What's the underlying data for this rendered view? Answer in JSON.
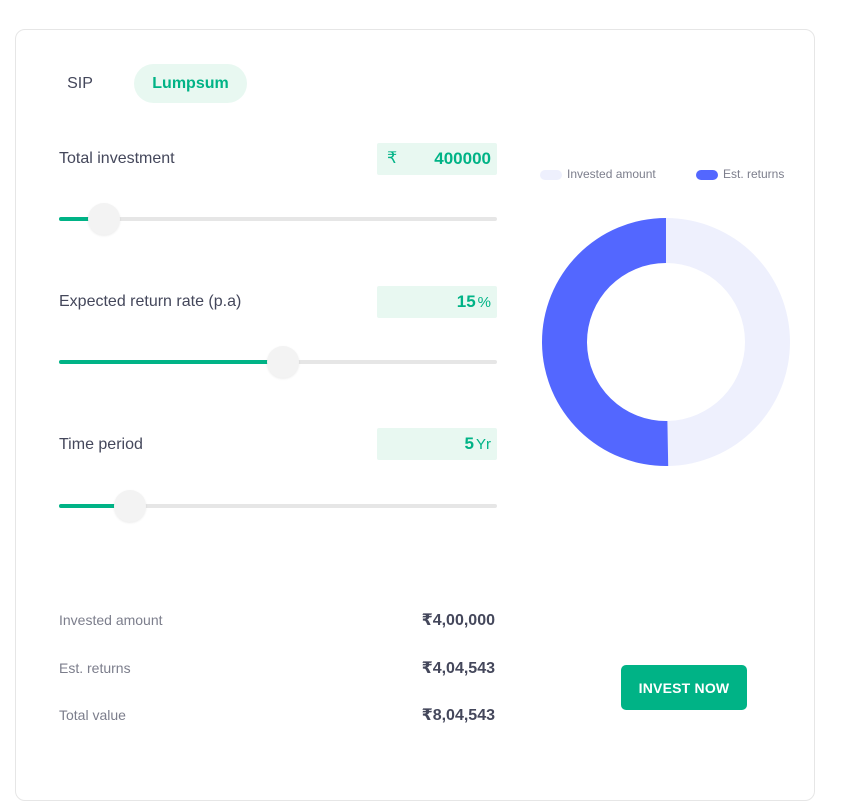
{
  "tabs": [
    {
      "label": "SIP",
      "active": false
    },
    {
      "label": "Lumpsum",
      "active": true
    }
  ],
  "inputs": {
    "total_investment": {
      "label": "Total investment",
      "currency": "₹",
      "value": "400000",
      "slider_fraction": 0.07
    },
    "return_rate": {
      "label": "Expected return rate (p.a)",
      "value": "15",
      "unit": "%",
      "slider_fraction": 0.48
    },
    "time_period": {
      "label": "Time period",
      "value": "5",
      "unit": "Yr",
      "slider_fraction": 0.13
    }
  },
  "legend": {
    "invested_label": "Invested amount",
    "returns_label": "Est. returns"
  },
  "summary": {
    "invested": {
      "label": "Invested amount",
      "value": "₹4,00,000"
    },
    "returns": {
      "label": "Est. returns",
      "value": "₹4,04,543"
    },
    "total": {
      "label": "Total value",
      "value": "₹8,04,543"
    }
  },
  "cta": {
    "label": "INVEST NOW"
  },
  "colors": {
    "accent": "#00b386",
    "accent_light": "#e8f8f1",
    "invested": "#eef0fd",
    "returns": "#5367ff"
  },
  "chart_data": {
    "type": "pie",
    "categories": [
      "Invested amount",
      "Est. returns"
    ],
    "values": [
      400000,
      404543
    ]
  }
}
